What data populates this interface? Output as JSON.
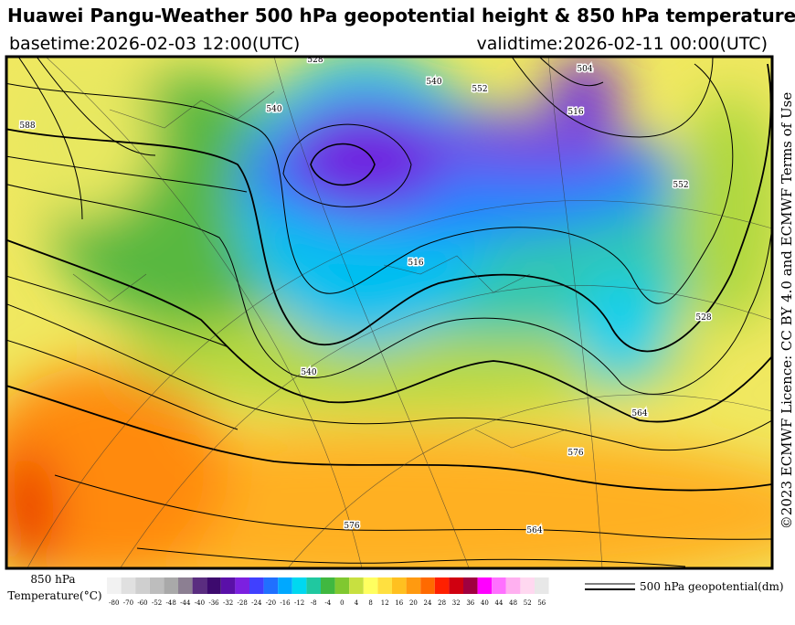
{
  "header": {
    "title": "Huawei Pangu-Weather 500 hPa geopotential height & 850 hPa temperature",
    "basetime": "basetime:2026-02-03 12:00(UTC)",
    "validtime": "validtime:2026-02-11 00:00(UTC)"
  },
  "license": "©2023 ECMWF Licence: CC BY 4.0 and ECMWF Terms of Use",
  "map": {
    "contour_labels": [
      "504",
      "516",
      "528",
      "540",
      "552",
      "528",
      "516",
      "540",
      "552",
      "564",
      "576",
      "564",
      "588",
      "576",
      "540"
    ]
  },
  "colorbar": {
    "title_line1": "850 hPa",
    "title_line2": "Temperature(°C)",
    "ticks": [
      "-80",
      "-70",
      "-60",
      "-52",
      "-48",
      "-44",
      "-40",
      "-36",
      "-32",
      "-28",
      "-24",
      "-20",
      "-16",
      "-12",
      "-8",
      "-4",
      "0",
      "4",
      "8",
      "12",
      "16",
      "20",
      "24",
      "28",
      "32",
      "36",
      "40",
      "44",
      "48",
      "52",
      "56"
    ],
    "colors": [
      "#f2f2f2",
      "#e0e0e0",
      "#cfcfcf",
      "#bdbdbd",
      "#a9a9a9",
      "#8c7f92",
      "#5a2d80",
      "#3d0a6e",
      "#5a10a8",
      "#7c20e0",
      "#4040ff",
      "#2070ff",
      "#00a8ff",
      "#00d8f0",
      "#20c8a0",
      "#40b840",
      "#80c830",
      "#c8e040",
      "#ffff60",
      "#ffe040",
      "#ffc020",
      "#ff9a10",
      "#ff6a00",
      "#ff2000",
      "#d00010",
      "#a00040",
      "#ff00ff",
      "#ff70ff",
      "#ffb0f0",
      "#ffd8f0",
      "#e8e8e8"
    ]
  },
  "legend": "500 hPa geopotential(dm)"
}
